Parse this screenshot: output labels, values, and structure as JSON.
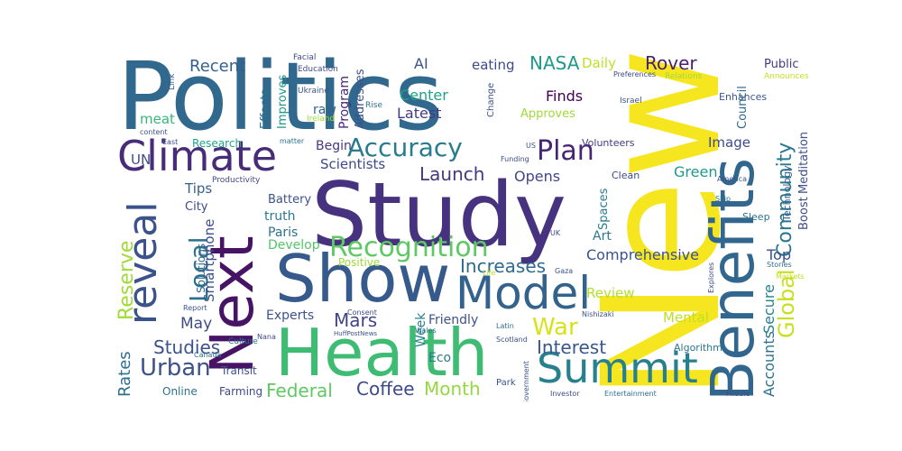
{
  "words": [
    {
      "id": "politics",
      "text": "Politics",
      "color": "#30688e"
    },
    {
      "id": "new",
      "text": "New",
      "color": "#f6e620"
    },
    {
      "id": "study",
      "text": "Study",
      "color": "#46327e"
    },
    {
      "id": "health",
      "text": "Health",
      "color": "#3fbc73"
    },
    {
      "id": "benefits",
      "text": "Benefits",
      "color": "#31678e"
    },
    {
      "id": "next",
      "text": "Next",
      "color": "#471365"
    },
    {
      "id": "show",
      "text": "Show",
      "color": "#375a8c"
    },
    {
      "id": "climate",
      "text": "Climate",
      "color": "#472c7a"
    },
    {
      "id": "model",
      "text": "Model",
      "color": "#33638d"
    },
    {
      "id": "summit",
      "text": "Summit",
      "color": "#27808e"
    },
    {
      "id": "reveal",
      "text": "reveal",
      "color": "#3b528b"
    },
    {
      "id": "recognition",
      "text": "Recognition",
      "color": "#5ec962"
    },
    {
      "id": "accuracy",
      "text": "Accuracy",
      "color": "#287c8e"
    },
    {
      "id": "plan",
      "text": "Plan",
      "color": "#482475"
    },
    {
      "id": "community",
      "text": "Community",
      "color": "#2a788e"
    },
    {
      "id": "global",
      "text": "Global",
      "color": "#c8e020"
    },
    {
      "id": "local",
      "text": "Local",
      "color": "#2c728e"
    },
    {
      "id": "reserve",
      "text": "Reserve",
      "color": "#a2da37"
    },
    {
      "id": "urban",
      "text": "Urban",
      "color": "#3b528b"
    },
    {
      "id": "war",
      "text": "War",
      "color": "#d8e219"
    },
    {
      "id": "launch",
      "text": "Launch",
      "color": "#453781"
    },
    {
      "id": "increases",
      "text": "Increases",
      "color": "#2f6b8e"
    },
    {
      "id": "interest",
      "text": "Interest",
      "color": "#38588c"
    },
    {
      "id": "federal",
      "text": "Federal",
      "color": "#5ec962"
    },
    {
      "id": "coffee",
      "text": "Coffee",
      "color": "#3e4a89"
    },
    {
      "id": "month",
      "text": "Month",
      "color": "#95d840"
    },
    {
      "id": "mars",
      "text": "Mars",
      "color": "#414487"
    },
    {
      "id": "studies",
      "text": "Studies",
      "color": "#3b528b"
    },
    {
      "id": "rover",
      "text": "Rover",
      "color": "#481f70"
    },
    {
      "id": "nasa",
      "text": "NASA",
      "color": "#1f9a8a"
    },
    {
      "id": "recent",
      "text": "Recent",
      "color": "#355f8d"
    },
    {
      "id": "comprehensive",
      "text": "Comprehensive",
      "color": "#3b528b"
    },
    {
      "id": "rates",
      "text": "Rates",
      "color": "#2e6e8e"
    },
    {
      "id": "may",
      "text": "May",
      "color": "#3e4c8a"
    },
    {
      "id": "accounts",
      "text": "Accounts",
      "color": "#2c728e"
    },
    {
      "id": "secure",
      "text": "Secure",
      "color": "#26828e"
    },
    {
      "id": "mental",
      "text": "Mental",
      "color": "#bddf26"
    },
    {
      "id": "review",
      "text": "Review",
      "color": "#b5de2b"
    },
    {
      "id": "top",
      "text": "Top",
      "color": "#3b528b"
    },
    {
      "id": "image",
      "text": "Image",
      "color": "#3e4a89"
    },
    {
      "id": "green",
      "text": "Green",
      "color": "#1f988b"
    },
    {
      "id": "finds",
      "text": "Finds",
      "color": "#440154"
    },
    {
      "id": "opens",
      "text": "Opens",
      "color": "#404688"
    },
    {
      "id": "latest",
      "text": "Latest",
      "color": "#443983"
    },
    {
      "id": "center",
      "text": "Center",
      "color": "#1fa187"
    },
    {
      "id": "ai",
      "text": "AI",
      "color": "#3b528b"
    },
    {
      "id": "eating",
      "text": "eating",
      "color": "#3e4a89"
    },
    {
      "id": "daily",
      "text": "Daily",
      "color": "#bddf26"
    },
    {
      "id": "smartphone",
      "text": "Smartphone",
      "color": "#3b528b"
    },
    {
      "id": "tips",
      "text": "Tips",
      "color": "#355f8d"
    },
    {
      "id": "paris",
      "text": "Paris",
      "color": "#2c728e"
    },
    {
      "id": "develop",
      "text": "Develop",
      "color": "#54c568"
    },
    {
      "id": "truth",
      "text": "truth",
      "color": "#2a788e"
    },
    {
      "id": "positive",
      "text": "Positive",
      "color": "#a0da39"
    },
    {
      "id": "experts",
      "text": "Experts",
      "color": "#3b528b"
    },
    {
      "id": "eco",
      "text": "Eco",
      "color": "#2a788e"
    },
    {
      "id": "week",
      "text": "Week",
      "color": "#26828e"
    },
    {
      "id": "friendly",
      "text": "Friendly",
      "color": "#3b528b"
    },
    {
      "id": "scientists",
      "text": "Scientists",
      "color": "#3e4a89"
    },
    {
      "id": "begin",
      "text": "Begin",
      "color": "#453781"
    },
    {
      "id": "meat",
      "text": "meat",
      "color": "#35b779"
    },
    {
      "id": "raw",
      "text": "raw",
      "color": "#33638d"
    },
    {
      "id": "art",
      "text": "Art",
      "color": "#2a788e"
    },
    {
      "id": "un",
      "text": "UN",
      "color": "#3e4a89"
    },
    {
      "id": "program",
      "text": "Program",
      "color": "#482878"
    },
    {
      "id": "improves",
      "text": "Improves",
      "color": "#1f988b"
    },
    {
      "id": "effects",
      "text": "Effects",
      "color": "#2c728e"
    },
    {
      "id": "addresses",
      "text": "Addresses",
      "color": "#3b528b"
    },
    {
      "id": "council",
      "text": "Council",
      "color": "#31688e"
    },
    {
      "id": "public",
      "text": "Public",
      "color": "#443983"
    },
    {
      "id": "meditation",
      "text": "Meditation",
      "color": "#3b528b"
    },
    {
      "id": "boost",
      "text": "Boost",
      "color": "#3e4c8a"
    },
    {
      "id": "technology",
      "text": "Technology",
      "color": "#35608d"
    },
    {
      "id": "approves",
      "text": "Approves",
      "color": "#a0da39"
    },
    {
      "id": "research",
      "text": "Research",
      "color": "#21a585"
    },
    {
      "id": "spaces",
      "text": "Spaces",
      "color": "#287c8e"
    },
    {
      "id": "battery",
      "text": "Battery",
      "color": "#3b528b"
    },
    {
      "id": "city",
      "text": "City",
      "color": "#3e4a89"
    },
    {
      "id": "solutions",
      "text": "Solutions",
      "color": "#31688e"
    },
    {
      "id": "transit",
      "text": "Transit",
      "color": "#3b528b"
    },
    {
      "id": "online",
      "text": "Online",
      "color": "#2c728e"
    },
    {
      "id": "farming",
      "text": "Farming",
      "color": "#3e4a89"
    },
    {
      "id": "algorithm",
      "text": "Algorithm",
      "color": "#2a788e"
    },
    {
      "id": "enhances",
      "text": "Enhances",
      "color": "#38588c"
    },
    {
      "id": "sleep",
      "text": "Sleep",
      "color": "#2c728e"
    },
    {
      "id": "clean",
      "text": "Clean",
      "color": "#3e4a89"
    },
    {
      "id": "volunteers",
      "text": "Volunteers",
      "color": "#443983"
    },
    {
      "id": "productivity",
      "text": "Productivity",
      "color": "#3e4a89"
    },
    {
      "id": "culture",
      "text": "Culture",
      "color": "#2c728e"
    },
    {
      "id": "change",
      "text": "Change",
      "color": "#3b528b"
    },
    {
      "id": "education",
      "text": "Education",
      "color": "#3e4a89"
    },
    {
      "id": "ukraine",
      "text": "Ukraine",
      "color": "#3b528b"
    },
    {
      "id": "facial",
      "text": "Facial",
      "color": "#3e4a89"
    },
    {
      "id": "link",
      "text": "Link",
      "color": "#38588c"
    },
    {
      "id": "ireland",
      "text": "Ireland",
      "color": "#a2da37"
    },
    {
      "id": "rise",
      "text": "Rise",
      "color": "#2c728e"
    },
    {
      "id": "israel",
      "text": "Israel",
      "color": "#3b528b"
    },
    {
      "id": "relations",
      "text": "Relations",
      "color": "#a2da37"
    },
    {
      "id": "announces",
      "text": "Announces",
      "color": "#c8e020"
    },
    {
      "id": "preferences",
      "text": "Preferences",
      "color": "#3e4a89"
    },
    {
      "id": "content",
      "text": "content",
      "color": "#3b528b"
    },
    {
      "id": "east",
      "text": "East",
      "color": "#3e4a89"
    },
    {
      "id": "matter",
      "text": "matter",
      "color": "#2c728e"
    },
    {
      "id": "us",
      "text": "US",
      "color": "#3b528b"
    },
    {
      "id": "funding",
      "text": "Funding",
      "color": "#3e4a89"
    },
    {
      "id": "government",
      "text": "Government",
      "color": "#3b528b"
    },
    {
      "id": "skip",
      "text": "Skip",
      "color": "#2c728e"
    },
    {
      "id": "america",
      "text": "America",
      "color": "#3b528b"
    },
    {
      "id": "stories",
      "text": "Stories",
      "color": "#2c728e"
    },
    {
      "id": "markets",
      "text": "Markets",
      "color": "#c8e020"
    },
    {
      "id": "explores",
      "text": "Explores",
      "color": "#3e4a89"
    },
    {
      "id": "nishizaki",
      "text": "Nishizaki",
      "color": "#3b528b"
    },
    {
      "id": "uk",
      "text": "UK",
      "color": "#3e4a89"
    },
    {
      "id": "gaza",
      "text": "Gaza",
      "color": "#3b528b"
    },
    {
      "id": "life",
      "text": "Life",
      "color": "#bddf26"
    },
    {
      "id": "latin",
      "text": "Latin",
      "color": "#2c728e"
    },
    {
      "id": "wales",
      "text": "Wales",
      "color": "#2c728e"
    },
    {
      "id": "scotland",
      "text": "Scotland",
      "color": "#3b528b"
    },
    {
      "id": "consent",
      "text": "Consent",
      "color": "#3e4a89"
    },
    {
      "id": "nana",
      "text": "Nana",
      "color": "#3e4a89"
    },
    {
      "id": "huffpostnews",
      "text": "HuffPostNews",
      "color": "#3b528b"
    },
    {
      "id": "canada",
      "text": "Canada",
      "color": "#2c728e"
    },
    {
      "id": "report",
      "text": "Report",
      "color": "#3b528b"
    },
    {
      "id": "park",
      "text": "Park",
      "color": "#3b528b"
    },
    {
      "id": "investor",
      "text": "Investor",
      "color": "#3e4a89"
    },
    {
      "id": "entertainment",
      "text": "Entertainment",
      "color": "#2c728e"
    },
    {
      "id": "middle",
      "text": "Middle",
      "color": "#3b528b"
    }
  ]
}
